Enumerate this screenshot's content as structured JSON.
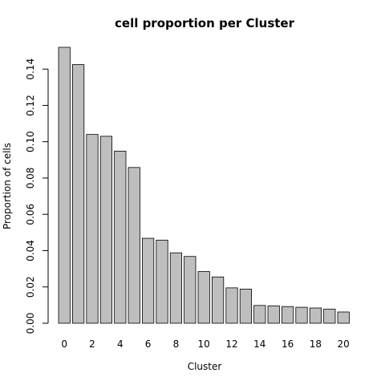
{
  "chart_data": {
    "type": "bar",
    "title": "cell proportion per Cluster",
    "xlabel": "Cluster",
    "ylabel": "Proportion of cells",
    "categories": [
      "0",
      "1",
      "2",
      "3",
      "4",
      "5",
      "6",
      "7",
      "8",
      "9",
      "10",
      "11",
      "12",
      "13",
      "14",
      "15",
      "16",
      "17",
      "18",
      "19",
      "20"
    ],
    "values": [
      0.152,
      0.1425,
      0.104,
      0.103,
      0.0948,
      0.0858,
      0.0468,
      0.0458,
      0.0388,
      0.0368,
      0.0285,
      0.0255,
      0.0195,
      0.0188,
      0.0098,
      0.0096,
      0.0092,
      0.0088,
      0.0084,
      0.0078,
      0.0062
    ],
    "x_tick_labels": [
      "0",
      "2",
      "4",
      "6",
      "8",
      "10",
      "12",
      "14",
      "16",
      "18",
      "20"
    ],
    "y_tick_labels": [
      "0.00",
      "0.02",
      "0.04",
      "0.06",
      "0.08",
      "0.10",
      "0.12",
      "0.14"
    ],
    "ylim": [
      0,
      0.152
    ],
    "bar_color": "#bebebe",
    "grid": false,
    "legend": "none"
  }
}
